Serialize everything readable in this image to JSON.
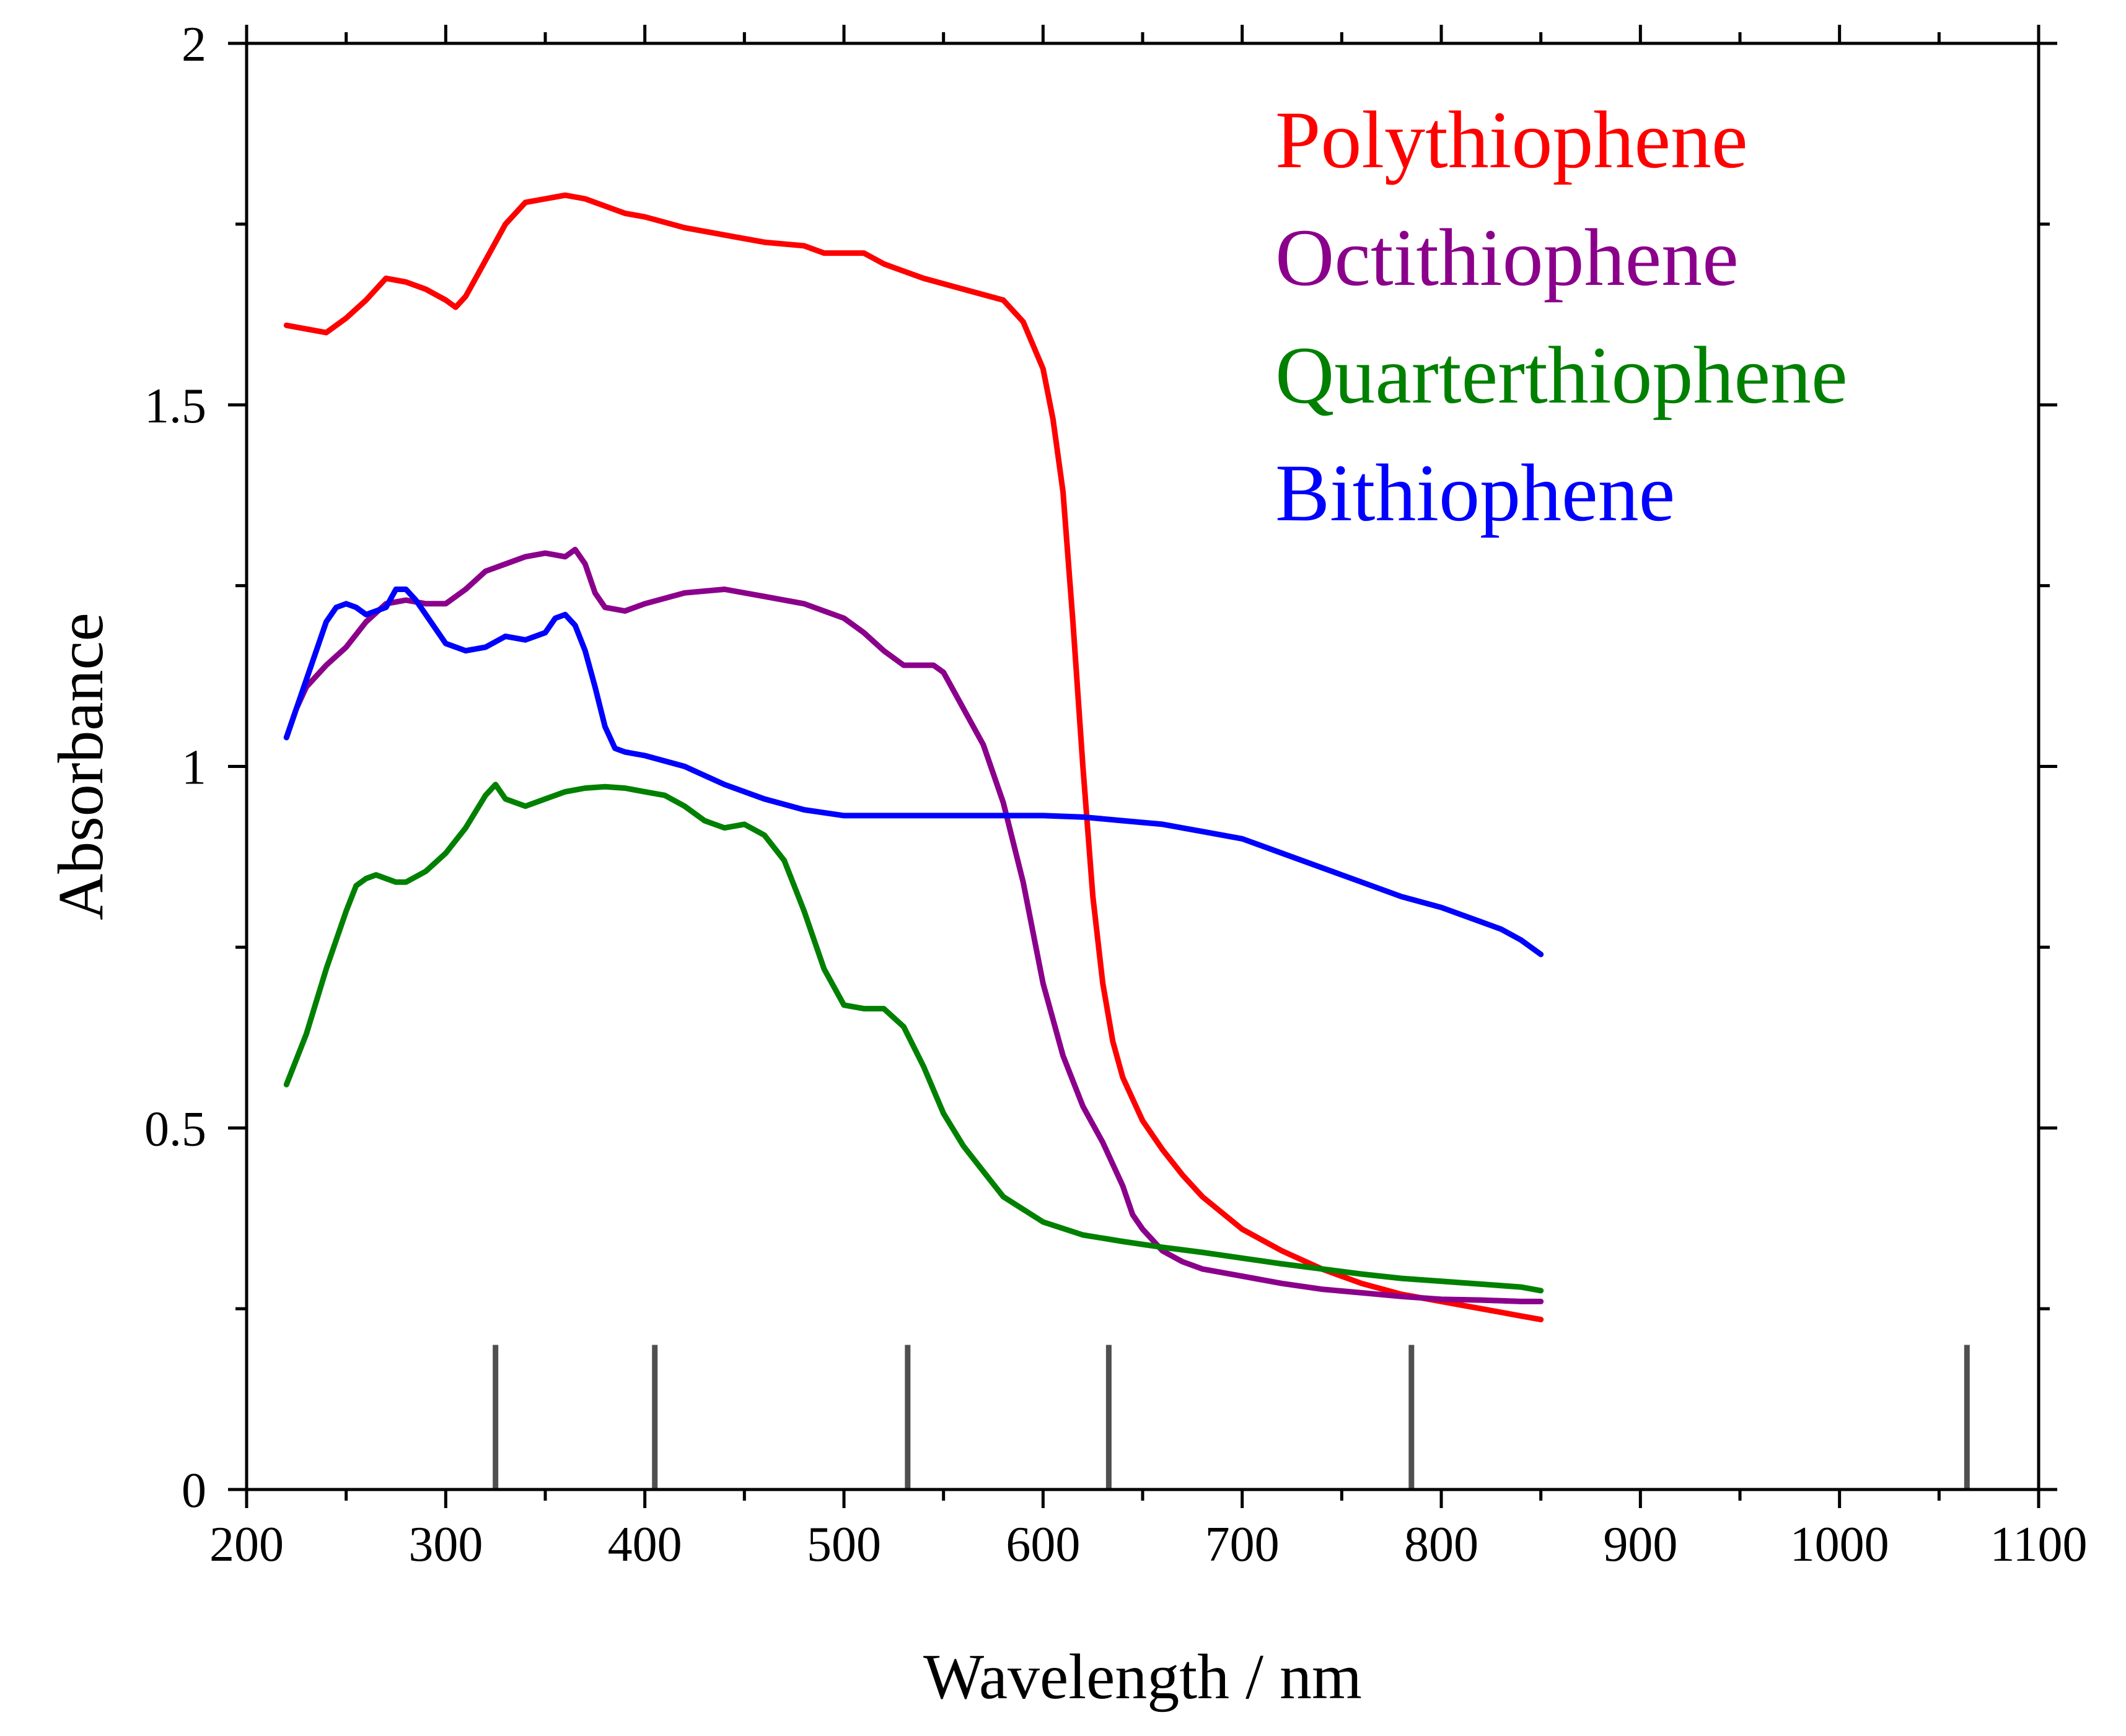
{
  "chart_data": {
    "type": "line",
    "title": "",
    "xlabel": "Wavelength / nm",
    "ylabel": "Absorbance",
    "xlim": [
      200,
      1100
    ],
    "ylim": [
      0,
      2
    ],
    "x_ticks": [
      200,
      300,
      400,
      500,
      600,
      700,
      800,
      900,
      1000,
      1100
    ],
    "x_tick_labels": [
      "200",
      "300",
      "400",
      "500",
      "600",
      "700",
      "800",
      "900",
      "1000",
      "1100"
    ],
    "y_ticks": [
      0,
      0.5,
      1,
      1.5,
      2
    ],
    "y_tick_labels": [
      "0",
      "0.5",
      "1",
      "1.5",
      "2"
    ],
    "legend_position": "top-right",
    "series": [
      {
        "name": "Polythiophene",
        "color": "#ff0000",
        "x": [
          220,
          230,
          240,
          250,
          260,
          270,
          280,
          290,
          300,
          305,
          310,
          320,
          330,
          340,
          350,
          360,
          370,
          380,
          390,
          400,
          420,
          440,
          460,
          480,
          490,
          500,
          510,
          520,
          530,
          540,
          560,
          580,
          590,
          600,
          605,
          610,
          615,
          620,
          625,
          630,
          635,
          640,
          645,
          650,
          660,
          670,
          680,
          700,
          720,
          740,
          760,
          780,
          800,
          820,
          840,
          850
        ],
        "y": [
          1.61,
          1.605,
          1.6,
          1.62,
          1.645,
          1.675,
          1.67,
          1.66,
          1.645,
          1.635,
          1.65,
          1.7,
          1.75,
          1.78,
          1.785,
          1.79,
          1.785,
          1.775,
          1.765,
          1.76,
          1.745,
          1.735,
          1.725,
          1.72,
          1.71,
          1.71,
          1.71,
          1.695,
          1.685,
          1.675,
          1.66,
          1.645,
          1.615,
          1.55,
          1.48,
          1.38,
          1.2,
          1.0,
          0.82,
          0.7,
          0.62,
          0.57,
          0.54,
          0.51,
          0.47,
          0.435,
          0.405,
          0.36,
          0.33,
          0.305,
          0.285,
          0.27,
          0.26,
          0.25,
          0.24,
          0.235
        ]
      },
      {
        "name": "Octithiophene",
        "color": "#8b008b",
        "x": [
          220,
          225,
          230,
          240,
          250,
          260,
          270,
          280,
          290,
          300,
          310,
          320,
          330,
          340,
          350,
          360,
          365,
          370,
          375,
          380,
          390,
          400,
          420,
          440,
          460,
          480,
          500,
          510,
          520,
          530,
          540,
          545,
          550,
          560,
          570,
          580,
          590,
          600,
          610,
          620,
          630,
          640,
          645,
          650,
          655,
          660,
          670,
          680,
          700,
          720,
          740,
          760,
          780,
          800,
          820,
          840,
          850
        ],
        "y": [
          1.04,
          1.08,
          1.11,
          1.14,
          1.165,
          1.2,
          1.225,
          1.23,
          1.225,
          1.225,
          1.245,
          1.27,
          1.28,
          1.29,
          1.295,
          1.29,
          1.3,
          1.28,
          1.24,
          1.22,
          1.215,
          1.225,
          1.24,
          1.245,
          1.235,
          1.225,
          1.205,
          1.185,
          1.16,
          1.14,
          1.14,
          1.14,
          1.13,
          1.08,
          1.03,
          0.95,
          0.84,
          0.7,
          0.6,
          0.53,
          0.48,
          0.42,
          0.38,
          0.36,
          0.345,
          0.33,
          0.315,
          0.305,
          0.295,
          0.285,
          0.277,
          0.272,
          0.267,
          0.263,
          0.262,
          0.26,
          0.26
        ]
      },
      {
        "name": "Quarterthiophene",
        "color": "#008000",
        "x": [
          220,
          230,
          240,
          250,
          255,
          260,
          265,
          270,
          275,
          280,
          290,
          300,
          310,
          320,
          325,
          330,
          340,
          350,
          360,
          370,
          380,
          390,
          400,
          410,
          420,
          430,
          440,
          450,
          460,
          470,
          480,
          490,
          500,
          510,
          520,
          530,
          540,
          550,
          560,
          570,
          580,
          600,
          620,
          640,
          660,
          680,
          700,
          720,
          740,
          760,
          780,
          800,
          820,
          840,
          850
        ],
        "y": [
          0.56,
          0.63,
          0.72,
          0.8,
          0.835,
          0.845,
          0.85,
          0.845,
          0.84,
          0.84,
          0.855,
          0.88,
          0.915,
          0.96,
          0.975,
          0.955,
          0.945,
          0.955,
          0.965,
          0.97,
          0.972,
          0.97,
          0.965,
          0.96,
          0.945,
          0.925,
          0.915,
          0.92,
          0.905,
          0.87,
          0.8,
          0.72,
          0.67,
          0.665,
          0.665,
          0.64,
          0.585,
          0.52,
          0.475,
          0.44,
          0.405,
          0.37,
          0.352,
          0.343,
          0.335,
          0.328,
          0.32,
          0.312,
          0.305,
          0.298,
          0.292,
          0.288,
          0.284,
          0.28,
          0.275
        ]
      },
      {
        "name": "Bithiophene",
        "color": "#0000ff",
        "x": [
          220,
          230,
          240,
          245,
          250,
          255,
          260,
          270,
          275,
          280,
          285,
          290,
          300,
          310,
          320,
          330,
          340,
          350,
          355,
          360,
          365,
          370,
          375,
          380,
          385,
          390,
          400,
          420,
          440,
          460,
          480,
          500,
          520,
          540,
          560,
          580,
          600,
          620,
          640,
          660,
          680,
          700,
          720,
          740,
          760,
          780,
          800,
          820,
          830,
          840,
          850
        ],
        "y": [
          1.04,
          1.12,
          1.2,
          1.22,
          1.225,
          1.22,
          1.21,
          1.22,
          1.245,
          1.245,
          1.23,
          1.21,
          1.17,
          1.16,
          1.165,
          1.18,
          1.175,
          1.185,
          1.205,
          1.21,
          1.195,
          1.16,
          1.11,
          1.055,
          1.025,
          1.02,
          1.015,
          1.0,
          0.975,
          0.955,
          0.94,
          0.932,
          0.932,
          0.932,
          0.932,
          0.932,
          0.932,
          0.93,
          0.925,
          0.92,
          0.91,
          0.9,
          0.88,
          0.86,
          0.84,
          0.82,
          0.805,
          0.785,
          0.775,
          0.76,
          0.74
        ]
      }
    ],
    "reference_lines": {
      "x": [
        325,
        405,
        532,
        633,
        785,
        1064
      ],
      "height": 0.2,
      "color": "#505050"
    }
  }
}
